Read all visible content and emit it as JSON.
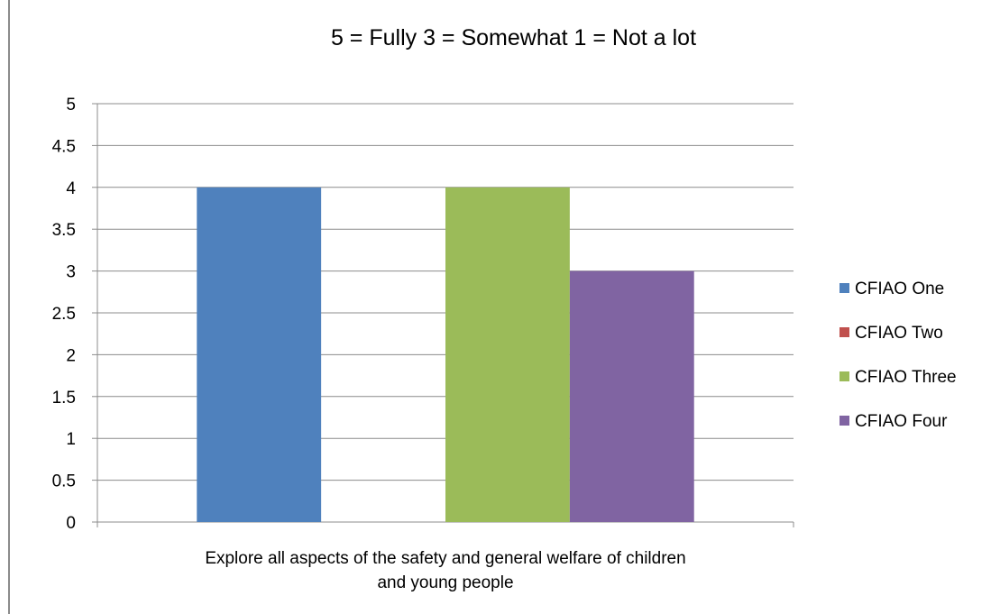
{
  "chart_data": {
    "type": "bar",
    "title": "5 = Fully   3 = Somewhat   1 = Not a lot",
    "categories": [
      "Explore all aspects of the safety and general welfare of children and young people"
    ],
    "category_lines": [
      "Explore all aspects of the safety and general welfare of children",
      "and young people"
    ],
    "series": [
      {
        "name": "CFIAO One",
        "values": [
          4
        ],
        "color": "#4F81BD"
      },
      {
        "name": "CFIAO Two",
        "values": [
          0
        ],
        "color": "#C0504D"
      },
      {
        "name": "CFIAO Three",
        "values": [
          4
        ],
        "color": "#9BBB59"
      },
      {
        "name": "CFIAO Four",
        "values": [
          3
        ],
        "color": "#8064A2"
      }
    ],
    "ylim": [
      0,
      5
    ],
    "yticks": [
      "0",
      "0.5",
      "1",
      "1.5",
      "2",
      "2.5",
      "3",
      "3.5",
      "4",
      "4.5",
      "5"
    ],
    "grid": true,
    "legend": "right"
  }
}
